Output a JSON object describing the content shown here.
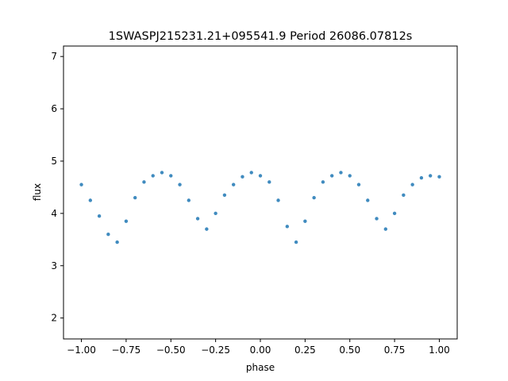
{
  "chart_data": {
    "type": "scatter",
    "title": "1SWASPJ215231.21+095541.9 Period 26086.07812s",
    "xlabel": "phase",
    "ylabel": "flux",
    "xlim": [
      -1.1,
      1.1
    ],
    "ylim": [
      1.6,
      7.2
    ],
    "x_ticks": [
      -1.0,
      -0.75,
      -0.5,
      -0.25,
      0.0,
      0.25,
      0.5,
      0.75,
      1.0
    ],
    "x_tick_labels": [
      "−1.00",
      "−0.75",
      "−0.50",
      "−0.25",
      "0.00",
      "0.25",
      "0.50",
      "0.75",
      "1.00"
    ],
    "y_ticks": [
      2,
      3,
      4,
      5,
      6,
      7
    ],
    "y_tick_labels": [
      "2",
      "3",
      "4",
      "5",
      "6",
      "7"
    ],
    "grid": false,
    "series": [
      {
        "color": "#1f77b4",
        "points": [
          [
            -1.0,
            4.55
          ],
          [
            -0.95,
            4.25
          ],
          [
            -0.9,
            3.95
          ],
          [
            -0.85,
            3.6
          ],
          [
            -0.8,
            3.45
          ],
          [
            -0.75,
            3.85
          ],
          [
            -0.7,
            4.3
          ],
          [
            -0.65,
            4.6
          ],
          [
            -0.6,
            4.72
          ],
          [
            -0.55,
            4.78
          ],
          [
            -0.5,
            4.72
          ],
          [
            -0.45,
            4.55
          ],
          [
            -0.4,
            4.25
          ],
          [
            -0.35,
            3.9
          ],
          [
            -0.3,
            3.7
          ],
          [
            -0.25,
            4.0
          ],
          [
            -0.2,
            4.35
          ],
          [
            -0.15,
            4.55
          ],
          [
            -0.1,
            4.7
          ],
          [
            -0.05,
            4.78
          ],
          [
            0.0,
            4.72
          ],
          [
            0.05,
            4.6
          ],
          [
            0.1,
            4.25
          ],
          [
            0.15,
            3.75
          ],
          [
            0.2,
            3.45
          ],
          [
            0.25,
            3.85
          ],
          [
            0.3,
            4.3
          ],
          [
            0.35,
            4.6
          ],
          [
            0.4,
            4.72
          ],
          [
            0.45,
            4.78
          ],
          [
            0.5,
            4.72
          ],
          [
            0.55,
            4.55
          ],
          [
            0.6,
            4.25
          ],
          [
            0.65,
            3.9
          ],
          [
            0.7,
            3.7
          ],
          [
            0.75,
            4.0
          ],
          [
            0.8,
            4.35
          ],
          [
            0.85,
            4.55
          ],
          [
            0.9,
            4.68
          ],
          [
            0.95,
            4.72
          ],
          [
            1.0,
            4.7
          ]
        ]
      }
    ]
  }
}
